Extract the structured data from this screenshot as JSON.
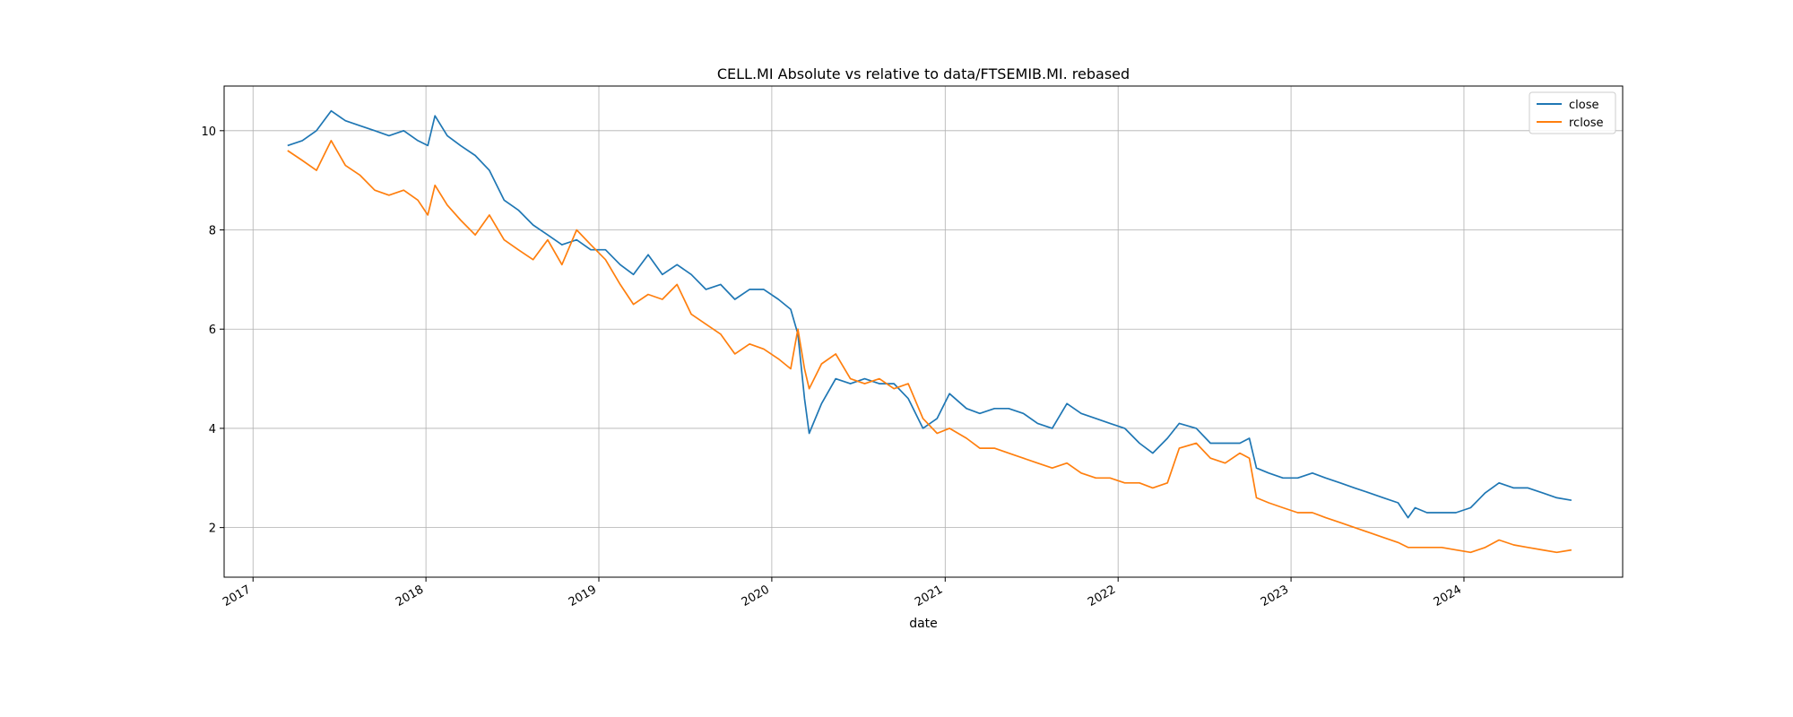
{
  "chart_data": {
    "type": "line",
    "title": "CELL.MI Absolute vs relative to data/FTSEMIB.MI. rebased",
    "xlabel": "date",
    "ylabel": "",
    "xlim": [
      "2016-11-01",
      "2024-12-01"
    ],
    "ylim": [
      1.0,
      10.9
    ],
    "x_ticks": [
      "2017",
      "2018",
      "2019",
      "2020",
      "2021",
      "2022",
      "2023",
      "2024"
    ],
    "y_ticks": [
      2,
      4,
      6,
      8,
      10
    ],
    "grid": true,
    "legend_position": "top-right",
    "colors": {
      "close": "#1f77b4",
      "rclose": "#ff7f0e"
    },
    "series": [
      {
        "name": "close",
        "x": [
          "2017-03-15",
          "2017-04-15",
          "2017-05-15",
          "2017-06-15",
          "2017-07-15",
          "2017-08-15",
          "2017-09-15",
          "2017-10-15",
          "2017-11-15",
          "2017-12-15",
          "2018-01-05",
          "2018-01-20",
          "2018-02-15",
          "2018-03-15",
          "2018-04-15",
          "2018-05-15",
          "2018-06-15",
          "2018-07-15",
          "2018-08-15",
          "2018-09-15",
          "2018-10-15",
          "2018-11-15",
          "2018-12-15",
          "2019-01-15",
          "2019-02-15",
          "2019-03-15",
          "2019-04-15",
          "2019-05-15",
          "2019-06-15",
          "2019-07-15",
          "2019-08-15",
          "2019-09-15",
          "2019-10-15",
          "2019-11-15",
          "2019-12-15",
          "2020-01-15",
          "2020-02-10",
          "2020-02-25",
          "2020-03-10",
          "2020-03-20",
          "2020-04-15",
          "2020-05-15",
          "2020-06-15",
          "2020-07-15",
          "2020-08-15",
          "2020-09-15",
          "2020-10-15",
          "2020-11-15",
          "2020-12-15",
          "2021-01-10",
          "2021-02-15",
          "2021-03-15",
          "2021-04-15",
          "2021-05-15",
          "2021-06-15",
          "2021-07-15",
          "2021-08-15",
          "2021-09-15",
          "2021-10-15",
          "2021-11-15",
          "2021-12-15",
          "2022-01-15",
          "2022-02-15",
          "2022-03-15",
          "2022-04-15",
          "2022-05-10",
          "2022-06-15",
          "2022-07-15",
          "2022-08-15",
          "2022-09-15",
          "2022-10-05",
          "2022-10-20",
          "2022-11-15",
          "2022-12-15",
          "2023-01-15",
          "2023-02-15",
          "2023-03-15",
          "2023-04-15",
          "2023-05-15",
          "2023-06-15",
          "2023-07-15",
          "2023-08-15",
          "2023-09-05",
          "2023-09-20",
          "2023-10-15",
          "2023-11-15",
          "2023-12-15",
          "2024-01-15",
          "2024-02-15",
          "2024-03-15",
          "2024-04-15",
          "2024-05-15",
          "2024-06-15",
          "2024-07-15",
          "2024-08-15"
        ],
        "y": [
          9.7,
          9.8,
          10.0,
          10.4,
          10.2,
          10.1,
          10.0,
          9.9,
          10.0,
          9.8,
          9.7,
          10.3,
          9.9,
          9.7,
          9.5,
          9.2,
          8.6,
          8.4,
          8.1,
          7.9,
          7.7,
          7.8,
          7.6,
          7.6,
          7.3,
          7.1,
          7.5,
          7.1,
          7.3,
          7.1,
          6.8,
          6.9,
          6.6,
          6.8,
          6.8,
          6.6,
          6.4,
          5.9,
          4.6,
          3.9,
          4.5,
          5.0,
          4.9,
          5.0,
          4.9,
          4.9,
          4.6,
          4.0,
          4.2,
          4.7,
          4.4,
          4.3,
          4.4,
          4.4,
          4.3,
          4.1,
          4.0,
          4.5,
          4.3,
          4.2,
          4.1,
          4.0,
          3.7,
          3.5,
          3.8,
          4.1,
          4.0,
          3.7,
          3.7,
          3.7,
          3.8,
          3.2,
          3.1,
          3.0,
          3.0,
          3.1,
          3.0,
          2.9,
          2.8,
          2.7,
          2.6,
          2.5,
          2.2,
          2.4,
          2.3,
          2.3,
          2.3,
          2.4,
          2.7,
          2.9,
          2.8,
          2.8,
          2.7,
          2.6,
          2.55
        ]
      },
      {
        "name": "rclose",
        "x": [
          "2017-03-15",
          "2017-04-15",
          "2017-05-15",
          "2017-06-15",
          "2017-07-15",
          "2017-08-15",
          "2017-09-15",
          "2017-10-15",
          "2017-11-15",
          "2017-12-15",
          "2018-01-05",
          "2018-01-20",
          "2018-02-15",
          "2018-03-15",
          "2018-04-15",
          "2018-05-15",
          "2018-06-15",
          "2018-07-15",
          "2018-08-15",
          "2018-09-15",
          "2018-10-15",
          "2018-11-15",
          "2018-12-15",
          "2019-01-15",
          "2019-02-15",
          "2019-03-15",
          "2019-04-15",
          "2019-05-15",
          "2019-06-15",
          "2019-07-15",
          "2019-08-15",
          "2019-09-15",
          "2019-10-15",
          "2019-11-15",
          "2019-12-15",
          "2020-01-15",
          "2020-02-10",
          "2020-02-25",
          "2020-03-10",
          "2020-03-20",
          "2020-04-15",
          "2020-05-15",
          "2020-06-15",
          "2020-07-15",
          "2020-08-15",
          "2020-09-15",
          "2020-10-15",
          "2020-11-15",
          "2020-12-15",
          "2021-01-10",
          "2021-02-15",
          "2021-03-15",
          "2021-04-15",
          "2021-05-15",
          "2021-06-15",
          "2021-07-15",
          "2021-08-15",
          "2021-09-15",
          "2021-10-15",
          "2021-11-15",
          "2021-12-15",
          "2022-01-15",
          "2022-02-15",
          "2022-03-15",
          "2022-04-15",
          "2022-05-10",
          "2022-06-15",
          "2022-07-15",
          "2022-08-15",
          "2022-09-15",
          "2022-10-05",
          "2022-10-20",
          "2022-11-15",
          "2022-12-15",
          "2023-01-15",
          "2023-02-15",
          "2023-03-15",
          "2023-04-15",
          "2023-05-15",
          "2023-06-15",
          "2023-07-15",
          "2023-08-15",
          "2023-09-05",
          "2023-09-20",
          "2023-10-15",
          "2023-11-15",
          "2023-12-15",
          "2024-01-15",
          "2024-02-15",
          "2024-03-15",
          "2024-04-15",
          "2024-05-15",
          "2024-06-15",
          "2024-07-15",
          "2024-08-15"
        ],
        "y": [
          9.6,
          9.4,
          9.2,
          9.8,
          9.3,
          9.1,
          8.8,
          8.7,
          8.8,
          8.6,
          8.3,
          8.9,
          8.5,
          8.2,
          7.9,
          8.3,
          7.8,
          7.6,
          7.4,
          7.8,
          7.3,
          8.0,
          7.7,
          7.4,
          6.9,
          6.5,
          6.7,
          6.6,
          6.9,
          6.3,
          6.1,
          5.9,
          5.5,
          5.7,
          5.6,
          5.4,
          5.2,
          6.0,
          5.2,
          4.8,
          5.3,
          5.5,
          5.0,
          4.9,
          5.0,
          4.8,
          4.9,
          4.2,
          3.9,
          4.0,
          3.8,
          3.6,
          3.6,
          3.5,
          3.4,
          3.3,
          3.2,
          3.3,
          3.1,
          3.0,
          3.0,
          2.9,
          2.9,
          2.8,
          2.9,
          3.6,
          3.7,
          3.4,
          3.3,
          3.5,
          3.4,
          2.6,
          2.5,
          2.4,
          2.3,
          2.3,
          2.2,
          2.1,
          2.0,
          1.9,
          1.8,
          1.7,
          1.6,
          1.6,
          1.6,
          1.6,
          1.55,
          1.5,
          1.6,
          1.75,
          1.65,
          1.6,
          1.55,
          1.5,
          1.55
        ]
      }
    ]
  }
}
